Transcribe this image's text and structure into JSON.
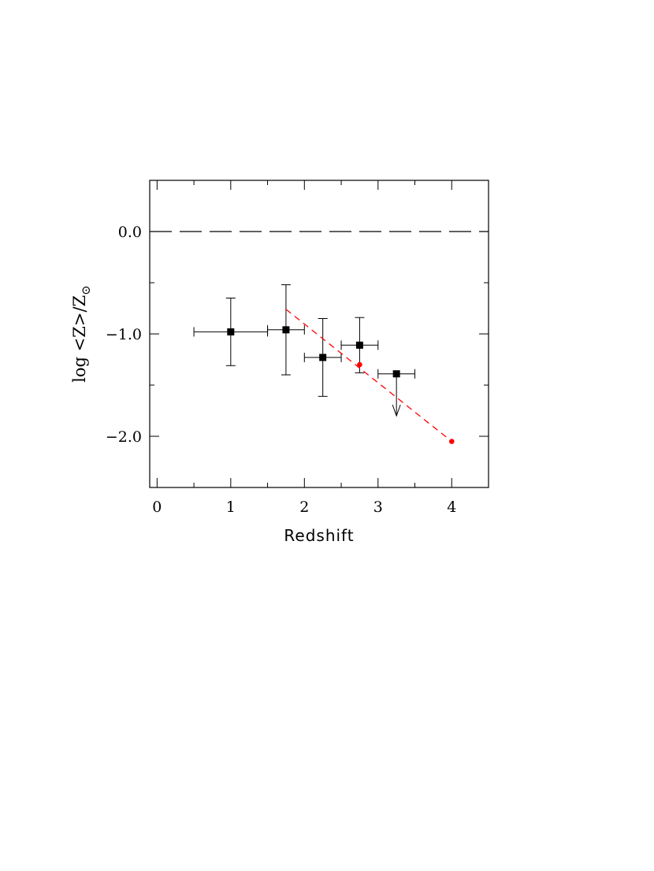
{
  "chart_data": {
    "type": "scatter",
    "title": "",
    "xlabel": "Redshift",
    "ylabel": {
      "main": "log <Z>/Z",
      "subscript": "⊙"
    },
    "xlim": [
      -0.1,
      4.5
    ],
    "ylim": [
      -2.5,
      0.5
    ],
    "x_ticks": [
      {
        "value": 0,
        "label": "0"
      },
      {
        "value": 1,
        "label": "1"
      },
      {
        "value": 2,
        "label": "2"
      },
      {
        "value": 3,
        "label": "3"
      },
      {
        "value": 4,
        "label": "4"
      }
    ],
    "y_ticks": [
      {
        "value": 0.0,
        "label": "0.0"
      },
      {
        "value": -1.0,
        "label": "−1.0"
      },
      {
        "value": -2.0,
        "label": "−2.0"
      }
    ],
    "x_minor_step": 0.5,
    "y_minor_step": 0.5,
    "solar_reference": {
      "y": 0.0,
      "style": "long-dash",
      "color": "#000000"
    },
    "series": [
      {
        "marker": "square",
        "color": "#000000",
        "points": [
          {
            "x": 1.0,
            "y": -0.98,
            "x_err": 0.5,
            "y_err_low": 0.33,
            "y_err_high": 0.33
          },
          {
            "x": 1.75,
            "y": -0.96,
            "x_err": 0.25,
            "y_err_low": 0.44,
            "y_err_high": 0.44
          },
          {
            "x": 2.25,
            "y": -1.23,
            "x_err": 0.25,
            "y_err_low": 0.38,
            "y_err_high": 0.38
          },
          {
            "x": 2.75,
            "y": -1.11,
            "x_err": 0.25,
            "y_err_low": 0.27,
            "y_err_high": 0.27
          },
          {
            "x": 3.25,
            "y": -1.39,
            "x_err": 0.25,
            "upper_limit": true,
            "arrow_to": -1.8
          }
        ]
      },
      {
        "marker": "circle",
        "color": "#ff0000",
        "line_style": "dashed",
        "line": [
          {
            "x": 1.75,
            "y": -0.76
          },
          {
            "x": 4.0,
            "y": -2.05
          }
        ],
        "points": [
          {
            "x": 2.75,
            "y": -1.3
          },
          {
            "x": 4.0,
            "y": -2.05
          }
        ]
      }
    ]
  }
}
